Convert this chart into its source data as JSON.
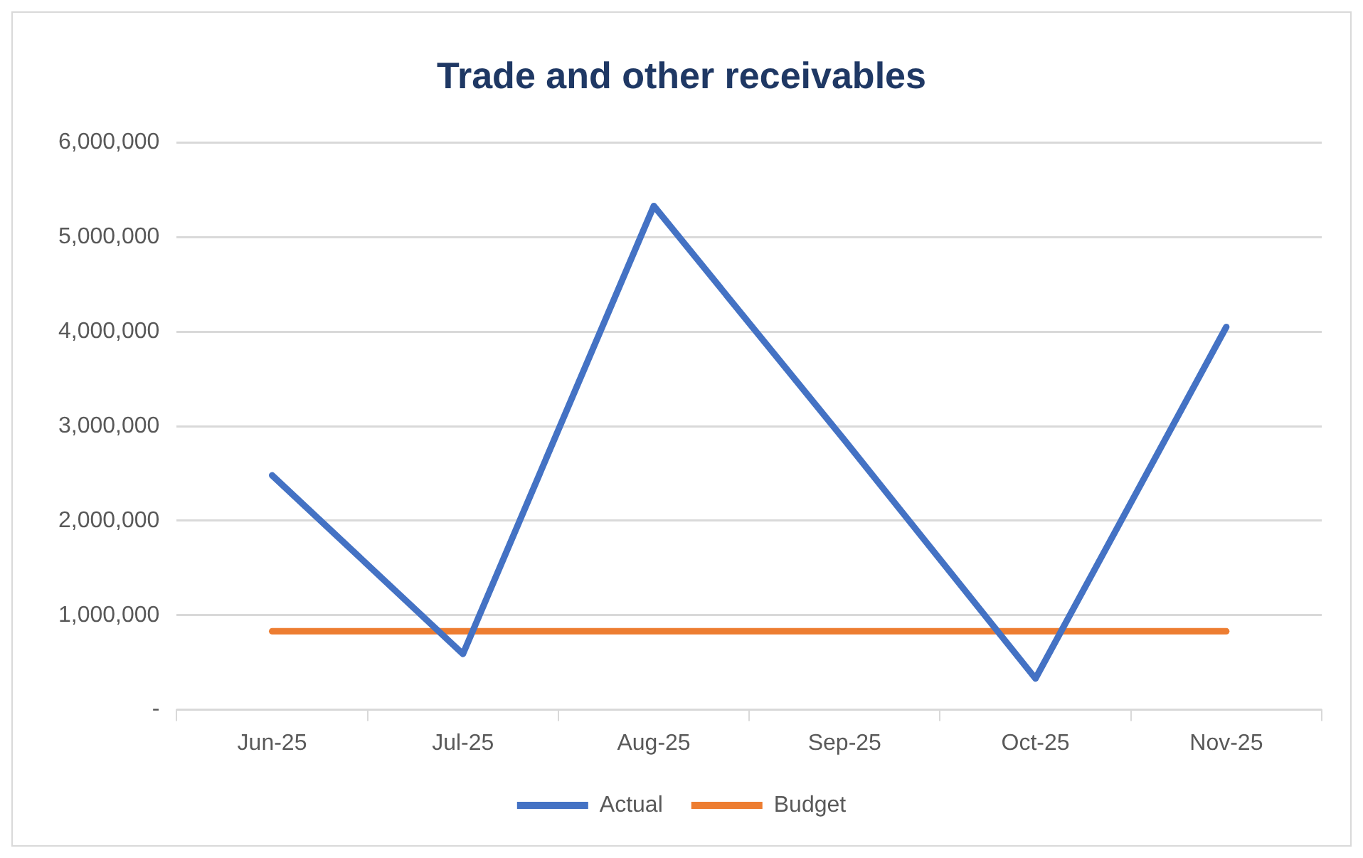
{
  "chart_data": {
    "type": "line",
    "title": "Trade and other receivables",
    "categories": [
      "Jun-25",
      "Jul-25",
      "Aug-25",
      "Sep-25",
      "Oct-25",
      "Nov-25"
    ],
    "series": [
      {
        "name": "Actual",
        "color": "#4472c4",
        "values": [
          2480000,
          590000,
          5330000,
          2850000,
          330000,
          4050000
        ]
      },
      {
        "name": "Budget",
        "color": "#ed7d31",
        "values": [
          830000,
          830000,
          830000,
          830000,
          830000,
          830000
        ]
      }
    ],
    "ylim": [
      0,
      6000000
    ],
    "yticks": [
      {
        "value": 0,
        "label": "-"
      },
      {
        "value": 1000000,
        "label": "1,000,000"
      },
      {
        "value": 2000000,
        "label": "2,000,000"
      },
      {
        "value": 3000000,
        "label": "3,000,000"
      },
      {
        "value": 4000000,
        "label": "4,000,000"
      },
      {
        "value": 5000000,
        "label": "5,000,000"
      },
      {
        "value": 6000000,
        "label": "6,000,000"
      }
    ],
    "grid": "y",
    "legend": "bottom",
    "marker": "none",
    "line_style": "solid"
  }
}
